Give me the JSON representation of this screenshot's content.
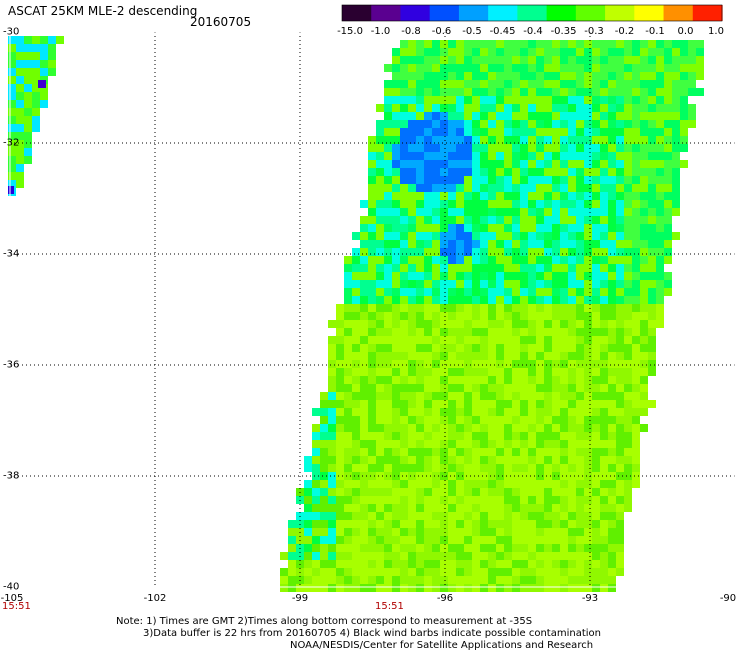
{
  "header": {
    "title": "ASCAT 25KM MLE-2 descending",
    "date": "20160705"
  },
  "colorbar": {
    "labels": [
      "-15.0",
      "-1.0",
      "-0.8",
      "-0.6",
      "-0.5",
      "-0.45",
      "-0.4",
      "-0.35",
      "-0.3",
      "-0.2",
      "-0.1",
      "0.0",
      "1.0"
    ],
    "colors": [
      "#2a0030",
      "#5a0090",
      "#3000e0",
      "#0050ff",
      "#00a0ff",
      "#00f0ff",
      "#00ff90",
      "#00ff00",
      "#60ff00",
      "#c0ff00",
      "#ffff00",
      "#ff9000",
      "#ff2000"
    ]
  },
  "map": {
    "lon_labels": [
      "-105",
      "-102",
      "-99",
      "-96",
      "-93",
      "-90"
    ],
    "lat_labels": [
      "-30",
      "-32",
      "-34",
      "-36",
      "-38",
      "-40"
    ],
    "lon_range": [
      -105,
      -90
    ],
    "lat_range": [
      -40,
      -30
    ],
    "pass_times": [
      "15:51",
      "15:51"
    ]
  },
  "notes": {
    "line1": "Note: 1) Times are GMT 2)Times along bottom correspond to measurement at -35S",
    "line2": "3)Data buffer is 22 hrs from 20160705 4) Black wind barbs indicate possible contamination",
    "line3": "NOAA/NESDIS/Center for Satellite Applications and Research"
  }
}
